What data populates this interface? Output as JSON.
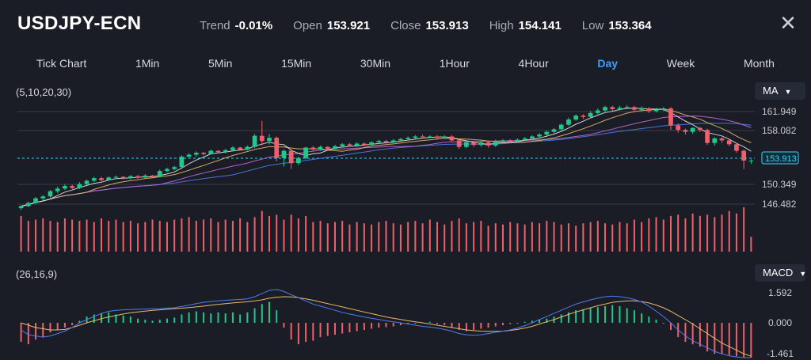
{
  "header": {
    "symbol": "USDJPY-ECN",
    "stats": [
      {
        "label": "Trend",
        "value": "-0.01%"
      },
      {
        "label": "Open",
        "value": "153.921"
      },
      {
        "label": "Close",
        "value": "153.913"
      },
      {
        "label": "High",
        "value": "154.141"
      },
      {
        "label": "Low",
        "value": "153.364"
      }
    ],
    "close_icon": "close-icon"
  },
  "tabs": [
    "Tick Chart",
    "1Min",
    "5Min",
    "15Min",
    "30Min",
    "1Hour",
    "4Hour",
    "Day",
    "Week",
    "Month"
  ],
  "active_tab": "Day",
  "main_indicator": {
    "params": "(5,10,20,30)",
    "selector": "MA"
  },
  "sub_indicator": {
    "params": "(26,16,9)",
    "selector": "MACD"
  },
  "price_axis": {
    "ticks": [
      "161.949",
      "158.082",
      "150.349",
      "146.482"
    ],
    "last_price": "153.913"
  },
  "macd_axis": {
    "ticks": [
      "1.592",
      "0.000",
      "-1.461"
    ]
  },
  "colors": {
    "up": "#20c98a",
    "down": "#f0606a",
    "accent": "#3d9eff",
    "ma5": "#e6e7ea",
    "ma10": "#e8b86b",
    "ma20": "#c06ad6",
    "ma30": "#4f7cf0",
    "dif": "#4f7cf0",
    "dea": "#e8b86b"
  },
  "chart_data": {
    "type": "candlestick",
    "ylim": [
      146.0,
      163.0
    ],
    "candles": [
      [
        146.6,
        146.9,
        146.3,
        147.0
      ],
      [
        146.9,
        147.4,
        146.8,
        147.6
      ],
      [
        147.4,
        148.1,
        147.2,
        148.3
      ],
      [
        148.1,
        148.4,
        147.7,
        148.6
      ],
      [
        148.4,
        149.2,
        148.2,
        149.4
      ],
      [
        149.2,
        149.6,
        148.9,
        149.9
      ],
      [
        149.6,
        150.0,
        149.4,
        150.3
      ],
      [
        150.0,
        149.7,
        149.5,
        150.2
      ],
      [
        149.7,
        150.3,
        149.5,
        150.6
      ],
      [
        150.3,
        150.8,
        150.1,
        151.0
      ],
      [
        150.8,
        151.2,
        150.6,
        151.4
      ],
      [
        151.2,
        150.9,
        150.7,
        151.4
      ],
      [
        150.9,
        151.3,
        150.8,
        151.5
      ],
      [
        151.3,
        151.4,
        151.1,
        151.6
      ],
      [
        151.4,
        151.2,
        151.0,
        151.5
      ],
      [
        151.2,
        151.5,
        151.0,
        151.7
      ],
      [
        151.5,
        151.3,
        151.1,
        151.7
      ],
      [
        151.3,
        151.6,
        151.2,
        151.8
      ],
      [
        151.6,
        151.4,
        151.3,
        151.7
      ],
      [
        151.4,
        152.3,
        151.3,
        152.5
      ],
      [
        152.3,
        152.6,
        152.1,
        152.8
      ],
      [
        152.6,
        152.9,
        152.4,
        153.1
      ],
      [
        152.9,
        154.5,
        152.8,
        154.7
      ],
      [
        154.5,
        154.8,
        154.3,
        155.0
      ],
      [
        154.8,
        155.1,
        154.5,
        155.3
      ],
      [
        155.1,
        154.9,
        154.7,
        155.2
      ],
      [
        154.9,
        155.4,
        154.8,
        155.6
      ],
      [
        155.4,
        155.2,
        155.0,
        155.5
      ],
      [
        155.2,
        155.5,
        155.0,
        155.7
      ],
      [
        155.5,
        155.9,
        155.3,
        156.1
      ],
      [
        155.9,
        155.6,
        155.4,
        156.0
      ],
      [
        155.6,
        156.0,
        155.5,
        156.2
      ],
      [
        156.0,
        157.7,
        155.8,
        158.0
      ],
      [
        157.7,
        156.9,
        156.2,
        160.0
      ],
      [
        156.9,
        157.4,
        156.4,
        158.0
      ],
      [
        157.4,
        154.3,
        153.8,
        157.6
      ],
      [
        154.3,
        155.4,
        153.0,
        155.6
      ],
      [
        155.4,
        153.5,
        152.6,
        155.6
      ],
      [
        153.5,
        154.3,
        153.2,
        154.5
      ],
      [
        154.3,
        155.9,
        154.1,
        156.0
      ],
      [
        155.9,
        155.6,
        155.3,
        156.1
      ],
      [
        155.6,
        156.0,
        155.4,
        156.2
      ],
      [
        156.0,
        155.7,
        155.5,
        156.1
      ],
      [
        155.7,
        156.1,
        155.6,
        156.3
      ],
      [
        156.1,
        156.4,
        155.9,
        156.6
      ],
      [
        156.4,
        156.2,
        156.0,
        156.6
      ],
      [
        156.2,
        156.5,
        156.0,
        156.7
      ],
      [
        156.5,
        156.3,
        156.1,
        156.7
      ],
      [
        156.3,
        156.7,
        156.1,
        156.9
      ],
      [
        156.7,
        156.9,
        156.5,
        157.1
      ],
      [
        156.9,
        156.7,
        156.5,
        157.1
      ],
      [
        156.7,
        157.0,
        156.6,
        157.2
      ],
      [
        157.0,
        157.2,
        156.8,
        157.4
      ],
      [
        157.2,
        157.4,
        157.0,
        157.6
      ],
      [
        157.4,
        157.6,
        157.2,
        157.8
      ],
      [
        157.6,
        157.5,
        157.3,
        157.9
      ],
      [
        157.5,
        157.6,
        157.3,
        157.8
      ],
      [
        157.6,
        157.4,
        157.1,
        157.8
      ],
      [
        157.4,
        157.6,
        157.2,
        157.8
      ],
      [
        157.6,
        157.0,
        156.8,
        157.8
      ],
      [
        157.0,
        156.0,
        155.7,
        157.2
      ],
      [
        156.0,
        156.7,
        155.8,
        156.9
      ],
      [
        156.7,
        156.3,
        156.0,
        156.9
      ],
      [
        156.3,
        156.7,
        156.0,
        156.9
      ],
      [
        156.7,
        156.2,
        155.9,
        156.9
      ],
      [
        156.2,
        156.9,
        156.0,
        157.1
      ],
      [
        156.9,
        157.0,
        156.7,
        157.2
      ],
      [
        157.0,
        156.8,
        156.6,
        157.2
      ],
      [
        156.8,
        157.1,
        156.6,
        157.3
      ],
      [
        157.1,
        157.3,
        156.9,
        157.5
      ],
      [
        157.3,
        157.6,
        157.1,
        157.8
      ],
      [
        157.6,
        157.9,
        157.4,
        158.1
      ],
      [
        157.9,
        158.3,
        157.7,
        158.5
      ],
      [
        158.3,
        158.7,
        158.1,
        158.9
      ],
      [
        158.7,
        159.4,
        158.5,
        159.6
      ],
      [
        159.4,
        160.2,
        159.2,
        160.5
      ],
      [
        160.2,
        160.8,
        160.0,
        161.0
      ],
      [
        160.8,
        160.6,
        160.3,
        161.0
      ],
      [
        160.6,
        161.2,
        160.4,
        161.5
      ],
      [
        161.2,
        161.6,
        161.0,
        161.9
      ],
      [
        161.6,
        162.1,
        161.4,
        162.3
      ],
      [
        162.1,
        161.8,
        161.5,
        162.3
      ],
      [
        161.8,
        162.0,
        161.6,
        162.3
      ],
      [
        162.0,
        162.1,
        161.8,
        162.4
      ],
      [
        162.1,
        161.7,
        161.4,
        162.3
      ],
      [
        161.7,
        161.9,
        161.4,
        162.2
      ],
      [
        161.9,
        161.5,
        161.2,
        162.1
      ],
      [
        161.5,
        161.7,
        161.3,
        162.0
      ],
      [
        161.7,
        161.9,
        161.5,
        162.1
      ],
      [
        161.9,
        159.3,
        158.6,
        162.1
      ],
      [
        159.3,
        158.6,
        158.2,
        159.6
      ],
      [
        158.6,
        158.3,
        157.9,
        158.8
      ],
      [
        158.3,
        158.9,
        158.0,
        159.0
      ],
      [
        158.9,
        158.6,
        158.3,
        159.1
      ],
      [
        158.6,
        156.6,
        156.3,
        158.8
      ],
      [
        156.6,
        157.3,
        156.2,
        157.5
      ],
      [
        157.3,
        157.0,
        156.6,
        157.5
      ],
      [
        157.0,
        156.4,
        156.1,
        157.2
      ],
      [
        156.4,
        155.4,
        155.1,
        156.6
      ],
      [
        155.4,
        153.9,
        152.6,
        155.6
      ],
      [
        153.9,
        153.9,
        153.4,
        154.1
      ]
    ],
    "volumes": [
      58,
      50,
      52,
      54,
      50,
      48,
      54,
      52,
      50,
      52,
      48,
      54,
      50,
      52,
      48,
      50,
      46,
      48,
      52,
      50,
      48,
      52,
      54,
      56,
      50,
      52,
      54,
      48,
      52,
      50,
      54,
      48,
      56,
      66,
      58,
      60,
      52,
      60,
      54,
      58,
      48,
      50,
      46,
      48,
      50,
      44,
      48,
      46,
      44,
      48,
      50,
      46,
      44,
      48,
      50,
      46,
      52,
      48,
      44,
      50,
      54,
      46,
      48,
      50,
      42,
      46,
      44,
      48,
      46,
      44,
      48,
      46,
      50,
      48,
      44,
      46,
      42,
      46,
      48,
      50,
      46,
      44,
      48,
      46,
      52,
      48,
      54,
      56,
      52,
      58,
      60,
      54,
      62,
      58,
      60,
      56,
      60,
      66,
      62,
      72,
      24
    ],
    "macd": [
      -0.8,
      -0.9,
      -0.7,
      -0.6,
      -0.4,
      -0.3,
      -0.2,
      -0.1,
      0.1,
      0.3,
      0.4,
      0.45,
      0.5,
      0.4,
      0.35,
      0.3,
      0.2,
      0.15,
      0.1,
      0.15,
      0.2,
      0.25,
      0.4,
      0.5,
      0.55,
      0.5,
      0.45,
      0.5,
      0.45,
      0.5,
      0.4,
      0.5,
      0.7,
      0.9,
      1.0,
      0.6,
      -0.2,
      -0.7,
      -0.9,
      -0.8,
      -0.75,
      -0.6,
      -0.55,
      -0.5,
      -0.45,
      -0.4,
      -0.35,
      -0.3,
      -0.25,
      -0.2,
      -0.18,
      -0.15,
      -0.1,
      -0.05,
      -0.02,
      0.02,
      0.05,
      -0.05,
      -0.1,
      -0.2,
      -0.3,
      -0.35,
      -0.3,
      -0.25,
      -0.2,
      -0.15,
      -0.1,
      -0.05,
      0.0,
      0.05,
      0.1,
      0.15,
      0.2,
      0.3,
      0.4,
      0.5,
      0.6,
      0.65,
      0.7,
      0.75,
      0.8,
      0.85,
      0.8,
      0.7,
      0.6,
      0.45,
      0.3,
      0.15,
      0.0,
      -0.3,
      -0.6,
      -0.8,
      -0.9,
      -1.0,
      -1.2,
      -1.3,
      -1.3,
      -1.35,
      -1.4,
      -1.45,
      -1.46
    ],
    "dif": [
      -0.3,
      -0.5,
      -0.55,
      -0.6,
      -0.55,
      -0.45,
      -0.35,
      -0.2,
      0.0,
      0.15,
      0.3,
      0.45,
      0.55,
      0.6,
      0.62,
      0.64,
      0.65,
      0.66,
      0.67,
      0.68,
      0.7,
      0.72,
      0.78,
      0.85,
      0.92,
      0.98,
      1.02,
      1.05,
      1.08,
      1.1,
      1.12,
      1.15,
      1.25,
      1.4,
      1.55,
      1.6,
      1.5,
      1.35,
      1.2,
      1.05,
      0.9,
      0.8,
      0.7,
      0.6,
      0.5,
      0.42,
      0.35,
      0.28,
      0.22,
      0.16,
      0.1,
      0.05,
      0.0,
      -0.05,
      -0.1,
      -0.15,
      -0.18,
      -0.22,
      -0.28,
      -0.35,
      -0.45,
      -0.5,
      -0.52,
      -0.5,
      -0.45,
      -0.4,
      -0.35,
      -0.3,
      -0.22,
      -0.12,
      0.0,
      0.15,
      0.3,
      0.45,
      0.6,
      0.75,
      0.9,
      1.0,
      1.1,
      1.18,
      1.25,
      1.28,
      1.25,
      1.2,
      1.12,
      1.0,
      0.8,
      0.55,
      0.3,
      0.0,
      -0.3,
      -0.55,
      -0.75,
      -0.9,
      -1.05,
      -1.2,
      -1.3,
      -1.38,
      -1.43,
      -1.46,
      -1.46
    ],
    "dea": [
      0.0,
      -0.1,
      -0.2,
      -0.25,
      -0.3,
      -0.3,
      -0.28,
      -0.2,
      -0.1,
      0.0,
      0.1,
      0.2,
      0.28,
      0.35,
      0.42,
      0.48,
      0.52,
      0.56,
      0.6,
      0.62,
      0.65,
      0.68,
      0.7,
      0.73,
      0.76,
      0.8,
      0.85,
      0.88,
      0.92,
      0.95,
      0.98,
      1.01,
      1.05,
      1.1,
      1.18,
      1.22,
      1.25,
      1.24,
      1.2,
      1.15,
      1.08,
      1.0,
      0.92,
      0.84,
      0.76,
      0.68,
      0.6,
      0.52,
      0.44,
      0.36,
      0.28,
      0.22,
      0.16,
      0.1,
      0.05,
      0.0,
      -0.05,
      -0.1,
      -0.15,
      -0.2,
      -0.25,
      -0.3,
      -0.33,
      -0.35,
      -0.36,
      -0.36,
      -0.35,
      -0.32,
      -0.28,
      -0.22,
      -0.15,
      -0.05,
      0.05,
      0.15,
      0.28,
      0.4,
      0.52,
      0.62,
      0.72,
      0.82,
      0.9,
      0.98,
      1.02,
      1.05,
      1.05,
      1.02,
      0.95,
      0.85,
      0.72,
      0.55,
      0.35,
      0.15,
      -0.05,
      -0.25,
      -0.45,
      -0.65,
      -0.85,
      -1.0,
      -1.15,
      -1.3,
      -1.4
    ]
  }
}
